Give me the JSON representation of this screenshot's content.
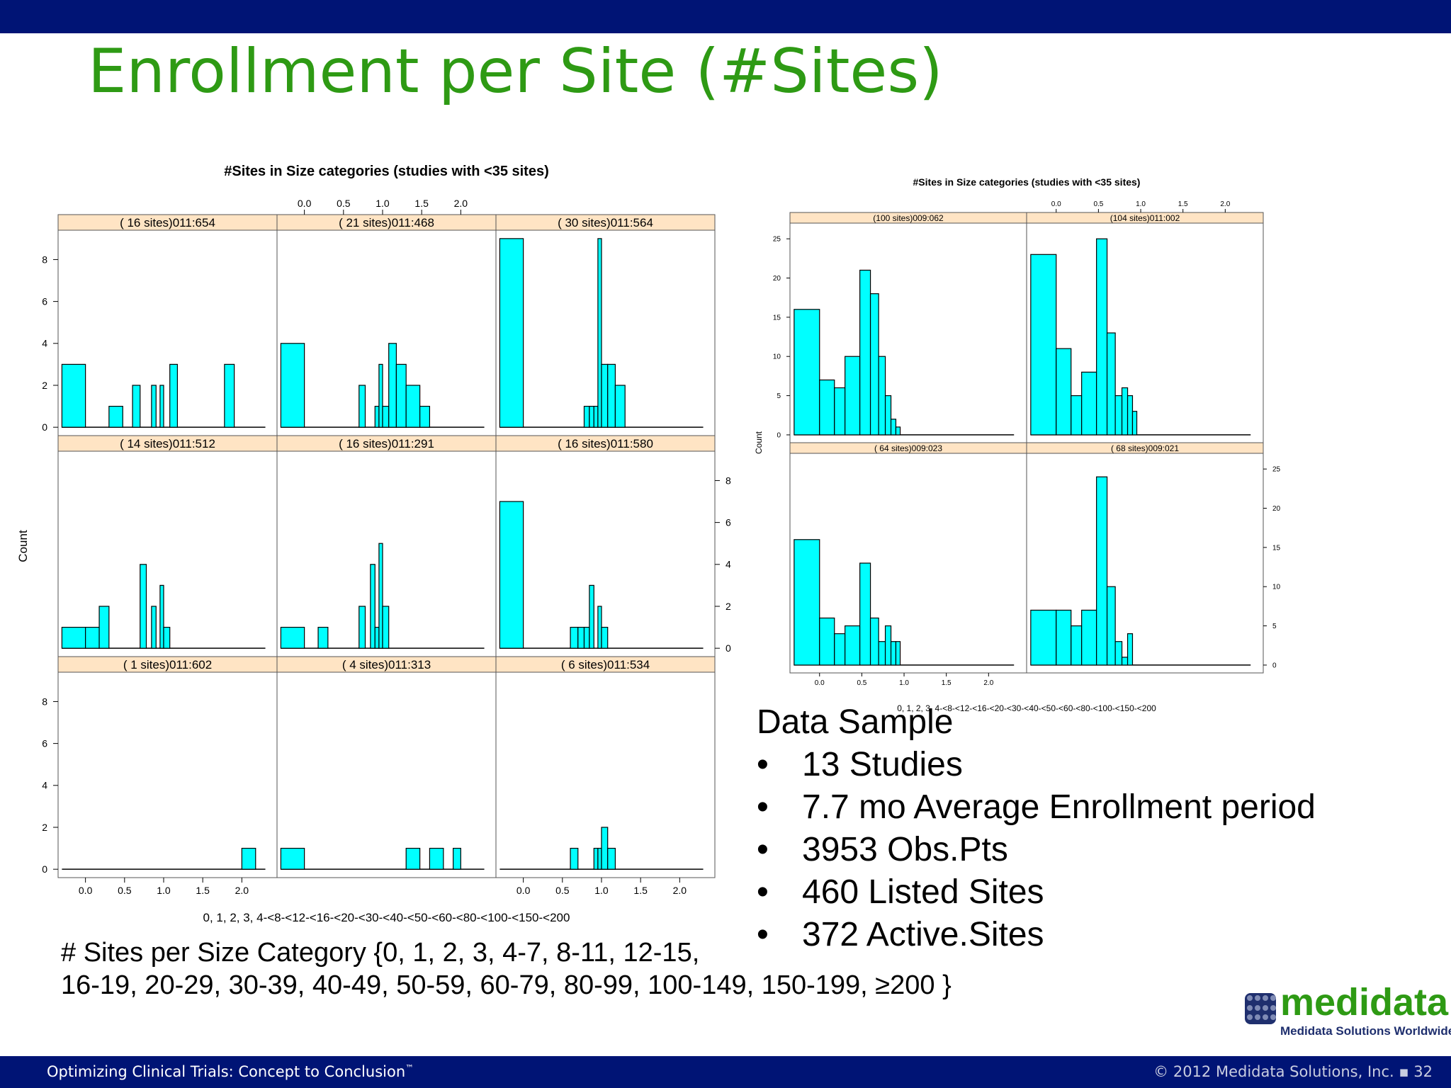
{
  "slide": {
    "title": "Enrollment per Site (#Sites)",
    "note_line1": "# Sites per Size Category {0, 1, 2, 3, 4-7, 8-11, 12-15,",
    "note_line2": "16-19, 20-29, 30-39, 40-49, 50-59, 60-79, 80-99, 100-149, 150-199, ≥200 }",
    "sample": {
      "heading": "Data Sample",
      "bullets": [
        "13 Studies",
        "7.7 mo Average Enrollment period",
        "3953 Obs.Pts",
        "460 Listed Sites",
        "372 Active.Sites"
      ]
    },
    "logo": {
      "wordmark": "medidata",
      "tagline": "Medidata Solutions Worldwide"
    },
    "footer": {
      "left": "Optimizing Clinical Trials: Concept to Conclusion",
      "trademark": "™",
      "right": "© 2012 Medidata Solutions, Inc. ▪ 32"
    },
    "colors": {
      "top_bar": "#001475",
      "title": "#2e9a14",
      "bar_fill": "#00ffff",
      "strip_fill": "#ffe4c4"
    }
  },
  "chart_data": [
    {
      "type": "bar",
      "title": "#Sites in Size categories (studies with <35 sites)",
      "xlabel": "0, 1, 2, 3, 4-<8-<12-<16-<20-<30-<40-<50-<60-<80-<100-<150-<200",
      "ylabel": "Count",
      "xlim": [
        -0.35,
        2.45
      ],
      "ylim": [
        -0.4,
        9.4
      ],
      "x_ticks": [
        0.0,
        0.5,
        1.0,
        1.5,
        2.0
      ],
      "x_tick_labels": [
        "0.0",
        "0.5",
        "1.0",
        "1.5",
        "2.0"
      ],
      "y_ticks": [
        0,
        2,
        4,
        6,
        8
      ],
      "grid": false,
      "bin_edges": [
        -0.301,
        0.0,
        0.176,
        0.301,
        0.477,
        0.602,
        0.699,
        0.778,
        0.845,
        0.903,
        0.954,
        1.0,
        1.079,
        1.176,
        1.301,
        1.477,
        1.602,
        1.778,
        1.903,
        2.0,
        2.176,
        2.301
      ],
      "panels": [
        {
          "label": "( 16 sites)011:654",
          "values": [
            3,
            0,
            0,
            1,
            0,
            2,
            0,
            0,
            2,
            0,
            2,
            0,
            3,
            0,
            0,
            0,
            0,
            3,
            0,
            0,
            0
          ]
        },
        {
          "label": "( 21 sites)011:468",
          "values": [
            4,
            0,
            0,
            0,
            0,
            0,
            2,
            0,
            0,
            1,
            3,
            1,
            4,
            3,
            2,
            1,
            0,
            0,
            0,
            0,
            0
          ]
        },
        {
          "label": "( 30 sites)011:564",
          "values": [
            9,
            0,
            0,
            0,
            0,
            0,
            0,
            1,
            1,
            1,
            9,
            3,
            3,
            2,
            0,
            0,
            0,
            0,
            0,
            0,
            0
          ]
        },
        {
          "label": "( 14 sites)011:512",
          "values": [
            1,
            1,
            2,
            0,
            0,
            0,
            4,
            0,
            2,
            0,
            3,
            1,
            0,
            0,
            0,
            0,
            0,
            0,
            0,
            0,
            0
          ]
        },
        {
          "label": "( 16 sites)011:291",
          "values": [
            1,
            0,
            1,
            0,
            0,
            0,
            2,
            0,
            4,
            1,
            5,
            2,
            0,
            0,
            0,
            0,
            0,
            0,
            0,
            0,
            0
          ]
        },
        {
          "label": "( 16 sites)011:580",
          "values": [
            7,
            0,
            0,
            0,
            0,
            1,
            1,
            1,
            3,
            0,
            2,
            1,
            0,
            0,
            0,
            0,
            0,
            0,
            0,
            0,
            0
          ]
        },
        {
          "label": "(  1 sites)011:602",
          "values": [
            0,
            0,
            0,
            0,
            0,
            0,
            0,
            0,
            0,
            0,
            0,
            0,
            0,
            0,
            0,
            0,
            0,
            0,
            0,
            1,
            0
          ]
        },
        {
          "label": "(  4 sites)011:313",
          "values": [
            1,
            0,
            0,
            0,
            0,
            0,
            0,
            0,
            0,
            0,
            0,
            0,
            0,
            0,
            1,
            0,
            1,
            0,
            1,
            0,
            0
          ]
        },
        {
          "label": "(  6 sites)011:534",
          "values": [
            0,
            0,
            0,
            0,
            0,
            1,
            0,
            0,
            0,
            1,
            1,
            2,
            1,
            0,
            0,
            0,
            0,
            0,
            0,
            0,
            0
          ]
        }
      ]
    },
    {
      "type": "bar",
      "title": "#Sites in Size categories (studies with <35 sites)",
      "xlabel": "0, 1, 2, 3, 4-<8-<12-<16-<20-<30-<40-<50-<60-<80-<100-<150-<200",
      "ylabel": "Count",
      "xlim": [
        -0.35,
        2.45
      ],
      "ylim": [
        -1,
        27
      ],
      "x_ticks": [
        0.0,
        0.5,
        1.0,
        1.5,
        2.0
      ],
      "x_tick_labels": [
        "0.0",
        "0.5",
        "1.0",
        "1.5",
        "2.0"
      ],
      "y_ticks": [
        0,
        5,
        10,
        15,
        20,
        25
      ],
      "grid": false,
      "bin_edges": [
        -0.301,
        0.0,
        0.176,
        0.301,
        0.477,
        0.602,
        0.699,
        0.778,
        0.845,
        0.903,
        0.954,
        1.0,
        1.079,
        1.176,
        1.301,
        1.477,
        1.602,
        1.778,
        1.903,
        2.0,
        2.176,
        2.301
      ],
      "panels": [
        {
          "label": "(100 sites)009:062",
          "values": [
            16,
            7,
            6,
            10,
            21,
            18,
            10,
            5,
            2,
            1,
            0,
            0,
            0,
            0,
            0,
            0,
            0,
            0,
            0,
            0,
            0
          ]
        },
        {
          "label": "(104 sites)011:002",
          "values": [
            23,
            11,
            5,
            8,
            25,
            13,
            5,
            6,
            5,
            3,
            0,
            0,
            0,
            0,
            0,
            0,
            0,
            0,
            0,
            0,
            0
          ]
        },
        {
          "label": "( 64 sites)009:023",
          "values": [
            16,
            6,
            4,
            5,
            13,
            6,
            3,
            5,
            3,
            3,
            0,
            0,
            0,
            0,
            0,
            0,
            0,
            0,
            0,
            0,
            0
          ]
        },
        {
          "label": "( 68 sites)009:021",
          "values": [
            7,
            7,
            5,
            7,
            24,
            10,
            3,
            1,
            4,
            0,
            0,
            0,
            0,
            0,
            0,
            0,
            0,
            0,
            0,
            0,
            0
          ]
        }
      ]
    }
  ]
}
